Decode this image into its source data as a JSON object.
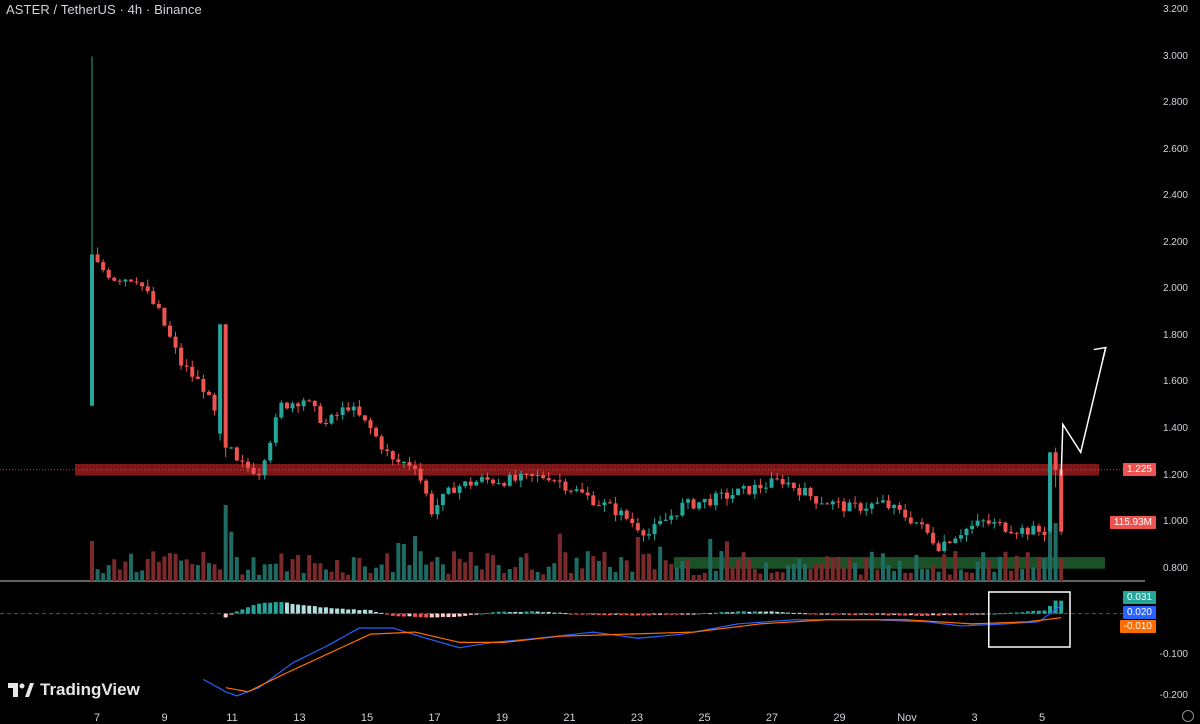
{
  "header": {
    "title": "ASTER / TetherUS · 4h · Binance"
  },
  "brand": {
    "name": "TradingView",
    "logo_icon": "tradingview-logo-icon"
  },
  "chart_data": [
    {
      "type": "candlestick",
      "title": "ASTER / TetherUS · 4h · Binance",
      "y_axis_ticks": [
        "3.200",
        "3.000",
        "2.800",
        "2.600",
        "2.400",
        "2.200",
        "2.000",
        "1.800",
        "1.600",
        "1.400",
        "1.200",
        "1.000",
        "0.800"
      ],
      "ylim": [
        0.7,
        3.2
      ],
      "x_axis_ticks": [
        "7",
        "9",
        "11",
        "13",
        "15",
        "17",
        "19",
        "21",
        "23",
        "25",
        "27",
        "29",
        "Nov",
        "3",
        "5"
      ],
      "last_price": "1.225",
      "last_volume": "115.93M",
      "colors": {
        "up": "#26a69a",
        "down": "#ef5350",
        "resistance_zone": "#8b1a1a",
        "support_zone": "#1e5a2a"
      },
      "zones": [
        {
          "name": "resistance",
          "from": 1.2,
          "to": 1.25
        },
        {
          "name": "support",
          "from": 0.8,
          "to": 0.85
        }
      ],
      "anchors": [
        {
          "x": 0,
          "price": 2.12
        },
        {
          "x": 4,
          "price": 2.05
        },
        {
          "x": 8,
          "price": 2.05
        },
        {
          "x": 12,
          "price": 1.9
        },
        {
          "x": 16,
          "price": 1.68
        },
        {
          "x": 20,
          "price": 1.58
        },
        {
          "x": 24,
          "price": 1.35
        },
        {
          "x": 26,
          "price": 1.25
        },
        {
          "x": 30,
          "price": 1.22
        },
        {
          "x": 34,
          "price": 1.5
        },
        {
          "x": 38,
          "price": 1.53
        },
        {
          "x": 42,
          "price": 1.42
        },
        {
          "x": 46,
          "price": 1.5
        },
        {
          "x": 50,
          "price": 1.4
        },
        {
          "x": 54,
          "price": 1.26
        },
        {
          "x": 58,
          "price": 1.25
        },
        {
          "x": 61,
          "price": 1.05
        },
        {
          "x": 65,
          "price": 1.15
        },
        {
          "x": 70,
          "price": 1.18
        },
        {
          "x": 76,
          "price": 1.18
        },
        {
          "x": 82,
          "price": 1.2
        },
        {
          "x": 88,
          "price": 1.12
        },
        {
          "x": 94,
          "price": 1.05
        },
        {
          "x": 100,
          "price": 0.95
        },
        {
          "x": 106,
          "price": 1.07
        },
        {
          "x": 112,
          "price": 1.1
        },
        {
          "x": 118,
          "price": 1.14
        },
        {
          "x": 124,
          "price": 1.18
        },
        {
          "x": 130,
          "price": 1.1
        },
        {
          "x": 136,
          "price": 1.06
        },
        {
          "x": 142,
          "price": 1.08
        },
        {
          "x": 148,
          "price": 1.0
        },
        {
          "x": 152,
          "price": 0.9
        },
        {
          "x": 156,
          "price": 0.96
        },
        {
          "x": 160,
          "price": 1.0
        },
        {
          "x": 166,
          "price": 0.97
        },
        {
          "x": 170,
          "price": 0.96
        }
      ],
      "candle_count": 175,
      "special_candles": [
        {
          "index": 0,
          "open": 1.5,
          "close": 2.15,
          "high": 3.0,
          "low": 1.5
        },
        {
          "index": 23,
          "open": 1.38,
          "close": 1.85,
          "high": 1.85,
          "low": 1.35
        },
        {
          "index": 24,
          "open": 1.85,
          "close": 1.32,
          "high": 1.85,
          "low": 1.28
        },
        {
          "index": 172,
          "open": 0.96,
          "close": 1.3,
          "high": 1.3,
          "low": 0.95
        },
        {
          "index": 173,
          "open": 1.3,
          "close": 1.225,
          "high": 1.32,
          "low": 1.15
        }
      ],
      "projection_path": [
        {
          "x": 174,
          "price": 1.2
        },
        {
          "x": 174.3,
          "price": 1.42
        },
        {
          "x": 177.5,
          "price": 1.3
        },
        {
          "x": 182,
          "price": 1.75
        }
      ]
    },
    {
      "type": "macd",
      "y_axis_ticks": [
        "-0.100",
        "-0.200"
      ],
      "ylim": [
        -0.21,
        0.05
      ],
      "histogram_value": "0.031",
      "macd_value": "0.020",
      "signal_value": "-0.010",
      "colors": {
        "macd": "#2962ff",
        "signal": "#ff6d00",
        "hist_up": "#26a69a",
        "hist_up_light": "#b2dfdb",
        "hist_down": "#ef5350",
        "hist_down_light": "#ffcdd2"
      },
      "macd_anchors": [
        {
          "x": 20,
          "price": -0.16
        },
        {
          "x": 24,
          "price": -0.19
        },
        {
          "x": 26,
          "price": -0.2
        },
        {
          "x": 30,
          "price": -0.18
        },
        {
          "x": 36,
          "price": -0.12
        },
        {
          "x": 42,
          "price": -0.08
        },
        {
          "x": 48,
          "price": -0.035
        },
        {
          "x": 54,
          "price": -0.035
        },
        {
          "x": 60,
          "price": -0.06
        },
        {
          "x": 66,
          "price": -0.083
        },
        {
          "x": 72,
          "price": -0.07
        },
        {
          "x": 80,
          "price": -0.06
        },
        {
          "x": 90,
          "price": -0.045
        },
        {
          "x": 98,
          "price": -0.06
        },
        {
          "x": 106,
          "price": -0.05
        },
        {
          "x": 116,
          "price": -0.025
        },
        {
          "x": 126,
          "price": -0.015
        },
        {
          "x": 140,
          "price": -0.015
        },
        {
          "x": 150,
          "price": -0.02
        },
        {
          "x": 156,
          "price": -0.03
        },
        {
          "x": 164,
          "price": -0.025
        },
        {
          "x": 170,
          "price": -0.02
        },
        {
          "x": 174,
          "price": 0.02
        }
      ],
      "signal_anchors": [
        {
          "x": 24,
          "price": -0.18
        },
        {
          "x": 28,
          "price": -0.19
        },
        {
          "x": 34,
          "price": -0.15
        },
        {
          "x": 42,
          "price": -0.1
        },
        {
          "x": 50,
          "price": -0.05
        },
        {
          "x": 58,
          "price": -0.045
        },
        {
          "x": 66,
          "price": -0.07
        },
        {
          "x": 74,
          "price": -0.07
        },
        {
          "x": 84,
          "price": -0.055
        },
        {
          "x": 96,
          "price": -0.05
        },
        {
          "x": 108,
          "price": -0.045
        },
        {
          "x": 120,
          "price": -0.025
        },
        {
          "x": 132,
          "price": -0.015
        },
        {
          "x": 146,
          "price": -0.015
        },
        {
          "x": 158,
          "price": -0.025
        },
        {
          "x": 168,
          "price": -0.02
        },
        {
          "x": 174,
          "price": -0.01
        }
      ],
      "hist_anchors": [
        {
          "x": 24,
          "price": -0.01
        },
        {
          "x": 26,
          "price": 0.005
        },
        {
          "x": 30,
          "price": 0.025
        },
        {
          "x": 34,
          "price": 0.028
        },
        {
          "x": 38,
          "price": 0.02
        },
        {
          "x": 44,
          "price": 0.012
        },
        {
          "x": 50,
          "price": 0.008
        },
        {
          "x": 54,
          "price": -0.005
        },
        {
          "x": 60,
          "price": -0.01
        },
        {
          "x": 66,
          "price": -0.008
        },
        {
          "x": 72,
          "price": 0.004
        },
        {
          "x": 80,
          "price": 0.005
        },
        {
          "x": 90,
          "price": -0.003
        },
        {
          "x": 98,
          "price": -0.004
        },
        {
          "x": 106,
          "price": -0.002
        },
        {
          "x": 114,
          "price": 0.004
        },
        {
          "x": 122,
          "price": 0.006
        },
        {
          "x": 130,
          "price": -0.002
        },
        {
          "x": 140,
          "price": -0.003
        },
        {
          "x": 150,
          "price": -0.005
        },
        {
          "x": 158,
          "price": -0.002
        },
        {
          "x": 166,
          "price": 0.003
        },
        {
          "x": 171,
          "price": 0.008
        },
        {
          "x": 173,
          "price": 0.031
        }
      ]
    }
  ]
}
